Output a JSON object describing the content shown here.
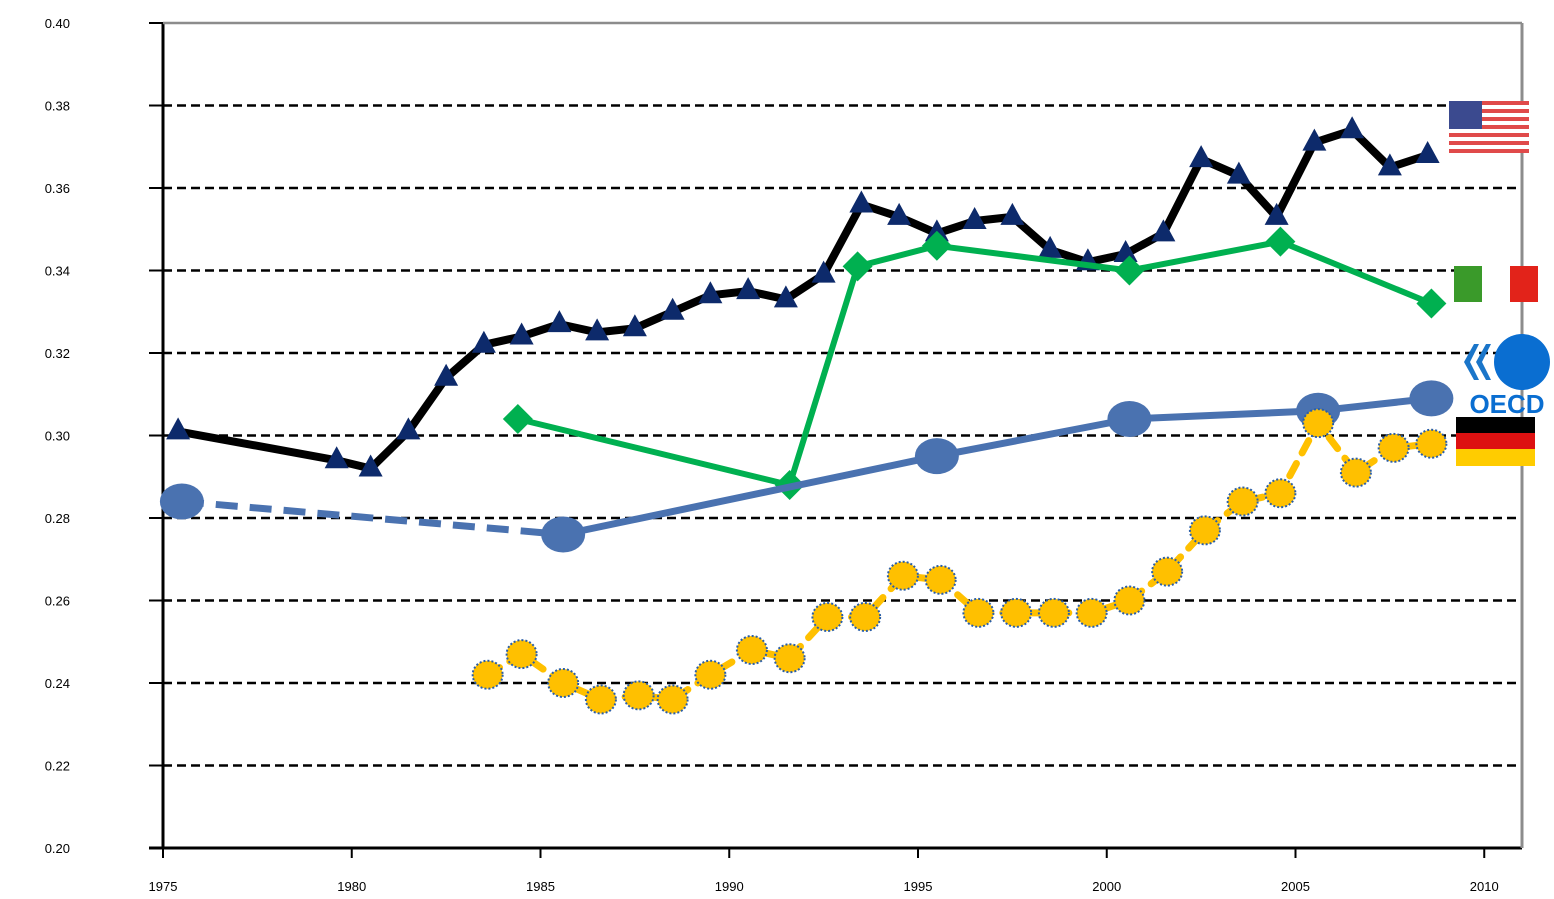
{
  "chart_data": {
    "type": "line",
    "title": "",
    "xlabel": "",
    "ylabel": "",
    "xlim": [
      1975,
      2011
    ],
    "ylim": [
      0.2,
      0.4
    ],
    "x_ticks": [
      "1975",
      "1980",
      "1985",
      "1990",
      "1995",
      "2000",
      "2005",
      "2010"
    ],
    "y_ticks": [
      "0.20",
      "0.22",
      "0.24",
      "0.26",
      "0.28",
      "0.30",
      "0.32",
      "0.34",
      "0.36",
      "0.38",
      "0.40"
    ],
    "grid": "horizontal dashed",
    "legend": "flag icons at right end of each series",
    "series": [
      {
        "key": "united-states",
        "marker": "triangle",
        "line_color": "#000000",
        "marker_color": "#0d2a6b",
        "dashed": false,
        "points": [
          [
            1975.4,
            0.301
          ],
          [
            1979.6,
            0.294
          ],
          [
            1980.5,
            0.292
          ],
          [
            1981.5,
            0.301
          ],
          [
            1982.5,
            0.314
          ],
          [
            1983.5,
            0.322
          ],
          [
            1984.5,
            0.324
          ],
          [
            1985.5,
            0.327
          ],
          [
            1986.5,
            0.325
          ],
          [
            1987.5,
            0.326
          ],
          [
            1988.5,
            0.33
          ],
          [
            1989.5,
            0.334
          ],
          [
            1990.5,
            0.335
          ],
          [
            1991.5,
            0.333
          ],
          [
            1992.5,
            0.339
          ],
          [
            1993.5,
            0.356
          ],
          [
            1994.5,
            0.353
          ],
          [
            1995.5,
            0.349
          ],
          [
            1996.5,
            0.352
          ],
          [
            1997.5,
            0.353
          ],
          [
            1998.5,
            0.345
          ],
          [
            1999.5,
            0.342
          ],
          [
            2000.5,
            0.344
          ],
          [
            2001.5,
            0.349
          ],
          [
            2002.5,
            0.367
          ],
          [
            2003.5,
            0.363
          ],
          [
            2004.5,
            0.353
          ],
          [
            2005.5,
            0.371
          ],
          [
            2006.5,
            0.374
          ],
          [
            2007.5,
            0.365
          ],
          [
            2008.5,
            0.368
          ]
        ]
      },
      {
        "key": "italy",
        "marker": "diamond",
        "line_color": "#00b050",
        "marker_color": "#00b050",
        "dashed": false,
        "points": [
          [
            1984.4,
            0.304
          ],
          [
            1991.6,
            0.288
          ],
          [
            1993.4,
            0.341
          ],
          [
            1995.5,
            0.346
          ],
          [
            2000.6,
            0.34
          ],
          [
            2004.6,
            0.347
          ],
          [
            2008.6,
            0.332
          ]
        ]
      },
      {
        "key": "oecd",
        "marker": "circle",
        "line_color": "#4a72b0",
        "marker_color": "#4a72b0",
        "dashed_until": 1985.6,
        "points": [
          [
            1975.5,
            0.284
          ],
          [
            1985.6,
            0.276
          ],
          [
            1995.5,
            0.295
          ],
          [
            2000.6,
            0.304
          ],
          [
            2005.6,
            0.306
          ],
          [
            2008.6,
            0.309
          ]
        ]
      },
      {
        "key": "germany",
        "marker": "circle-dotted",
        "line_color": "#ffc000",
        "marker_color": "#ffc000",
        "dashed": true,
        "points": [
          [
            1983.6,
            0.242
          ],
          [
            1984.5,
            0.247
          ],
          [
            1985.6,
            0.24
          ],
          [
            1986.6,
            0.236
          ],
          [
            1987.6,
            0.237
          ],
          [
            1988.5,
            0.236
          ],
          [
            1989.5,
            0.242
          ],
          [
            1990.6,
            0.248
          ],
          [
            1991.6,
            0.246
          ],
          [
            1992.6,
            0.256
          ],
          [
            1993.6,
            0.256
          ],
          [
            1994.6,
            0.266
          ],
          [
            1995.6,
            0.265
          ],
          [
            1996.6,
            0.257
          ],
          [
            1997.6,
            0.257
          ],
          [
            1998.6,
            0.257
          ],
          [
            1999.6,
            0.257
          ],
          [
            2000.6,
            0.26
          ],
          [
            2001.6,
            0.267
          ],
          [
            2002.6,
            0.277
          ],
          [
            2003.6,
            0.284
          ],
          [
            2004.6,
            0.286
          ],
          [
            2005.6,
            0.303
          ],
          [
            2006.6,
            0.291
          ],
          [
            2007.6,
            0.297
          ],
          [
            2008.6,
            0.298
          ]
        ]
      }
    ],
    "legend_icons": {
      "united-states": "us-flag-icon",
      "italy": "italy-flag-icon",
      "oecd": "oecd-logo",
      "germany": "germany-flag-icon"
    },
    "oecd_logo_text": "OECD"
  }
}
